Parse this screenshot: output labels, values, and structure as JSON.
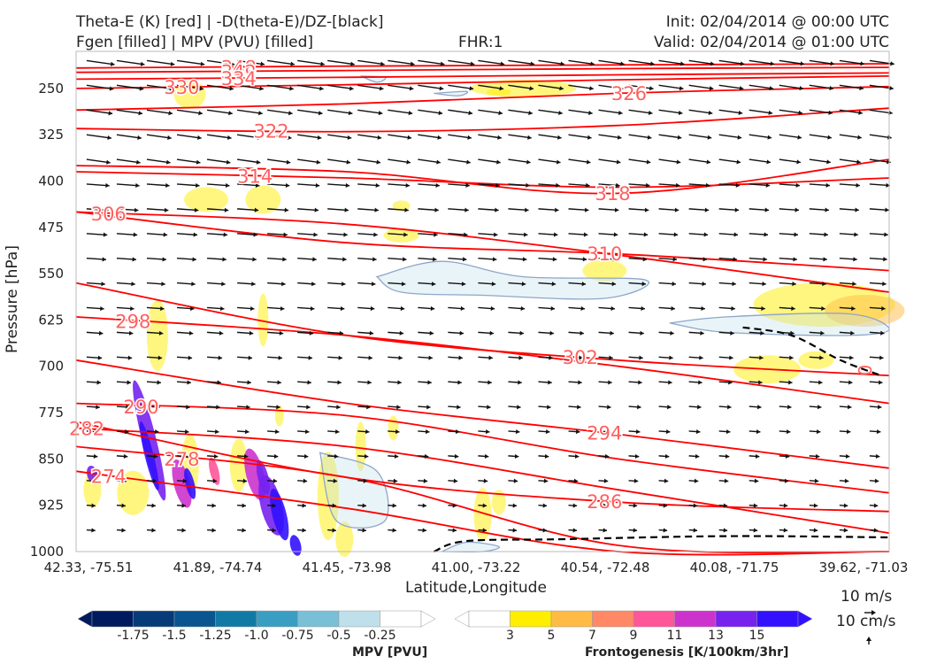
{
  "header": {
    "title_line1": "Theta-E (K) [red] | -D(theta-E)/DZ-[black]",
    "title_line2": "Fgen [filled] | MPV (PVU) [filled]",
    "fhr": "FHR:1",
    "init": "Init: 02/04/2014 @ 00:00 UTC",
    "valid": "Valid: 02/04/2014 @ 01:00 UTC"
  },
  "chart_data": {
    "type": "contour",
    "xlabel": "Latitude,Longitude",
    "ylabel": "Pressure [hPa]",
    "xticks": [
      "42.33, -75.51",
      "41.89, -74.74",
      "41.45, -73.98",
      "41.00, -73.22",
      "40.54, -72.48",
      "40.08, -71.75",
      "39.62, -71.03"
    ],
    "yticks": [
      250,
      325,
      400,
      475,
      550,
      625,
      700,
      775,
      850,
      925,
      1000
    ],
    "ylim": [
      1000,
      190
    ],
    "theta_e_color": "#ff0000",
    "theta_e_label_color": "#ff6060",
    "theta_e_contours": [
      {
        "label": "348",
        "p": [
          217,
          214,
          212,
          210
        ],
        "label_at": 0.2
      },
      {
        "label": "342",
        "p": [
          224,
          221,
          218,
          216
        ],
        "label_at": 0.2
      },
      {
        "label": "334",
        "p": [
          235,
          232,
          228,
          225
        ],
        "label_at": 0.2
      },
      {
        "label": "330",
        "p": [
          250,
          244,
          236,
          230
        ],
        "label_at": 0.13
      },
      {
        "label": "326",
        "p": [
          285,
          275,
          258,
          247
        ],
        "label_at": 0.68
      },
      {
        "label": "322",
        "p": [
          315,
          320,
          310,
          282
        ],
        "label_at": 0.24
      },
      {
        "label": "318",
        "p": [
          375,
          385,
          420,
          365
        ],
        "label_at": 0.66
      },
      {
        "label": "314",
        "p": [
          385,
          395,
          410,
          395
        ],
        "label_at": 0.22
      },
      {
        "label": "310",
        "p": [
          450,
          500,
          518,
          545
        ],
        "label_at": 0.65
      },
      {
        "label": "306",
        "p": [
          450,
          470,
          520,
          580
        ],
        "label_at": 0.04
      },
      {
        "label": "302",
        "p": [
          565,
          650,
          690,
          715
        ],
        "label_at": 0.62
      },
      {
        "label": "298",
        "p": [
          620,
          650,
          700,
          760
        ],
        "label_at": 0.07
      },
      {
        "label": "294",
        "p": [
          690,
          760,
          810,
          865
        ],
        "label_at": 0.65
      },
      {
        "label": "290",
        "p": [
          760,
          780,
          850,
          905
        ],
        "label_at": 0.08
      },
      {
        "label": "286",
        "p": [
          790,
          880,
          920,
          935
        ],
        "label_at": 0.65
      },
      {
        "label": "282",
        "p": [
          800,
          830,
          900,
          970
        ],
        "label_at": 0.0
      },
      {
        "label": "278",
        "p": [
          830,
          880,
          990,
          1000
        ],
        "label_at": 0.13
      },
      {
        "label": "274",
        "p": [
          870,
          930,
          1000,
          1000
        ],
        "label_at": 0.04
      }
    ],
    "dthetae_dz_dashed": [
      {
        "label": "0",
        "points": [
          [
            0.82,
            637
          ],
          [
            0.88,
            650
          ],
          [
            0.94,
            690
          ],
          [
            0.99,
            715
          ]
        ]
      },
      {
        "label": "",
        "points": [
          [
            0.44,
            1000
          ],
          [
            0.48,
            983
          ],
          [
            0.6,
            980
          ],
          [
            0.8,
            975
          ],
          [
            1.0,
            977
          ]
        ]
      }
    ],
    "mpv_colorbar": {
      "title": "MPV [PVU]",
      "ticks": [
        "-1.75",
        "-1.5",
        "-1.25",
        "-1.0",
        "-0.75",
        "-0.5",
        "-0.25"
      ],
      "colors": [
        "#001a5e",
        "#063b78",
        "#0a5590",
        "#117aa4",
        "#3a9ec3",
        "#79bfd6",
        "#bfe0ea",
        "#ffffff"
      ]
    },
    "fgen_colorbar": {
      "title": "Frontogenesis [K/100km/3hr]",
      "ticks": [
        "3",
        "5",
        "7",
        "9",
        "11",
        "13",
        "15"
      ],
      "colors": [
        "#ffffff",
        "#ffee00",
        "#ffbb44",
        "#ff8866",
        "#ff5599",
        "#cc33cc",
        "#7722ee",
        "#3311ff"
      ]
    },
    "wind_reference": {
      "horizontal": "10 m/s",
      "vertical": "10 cm/s"
    },
    "grid": false
  }
}
